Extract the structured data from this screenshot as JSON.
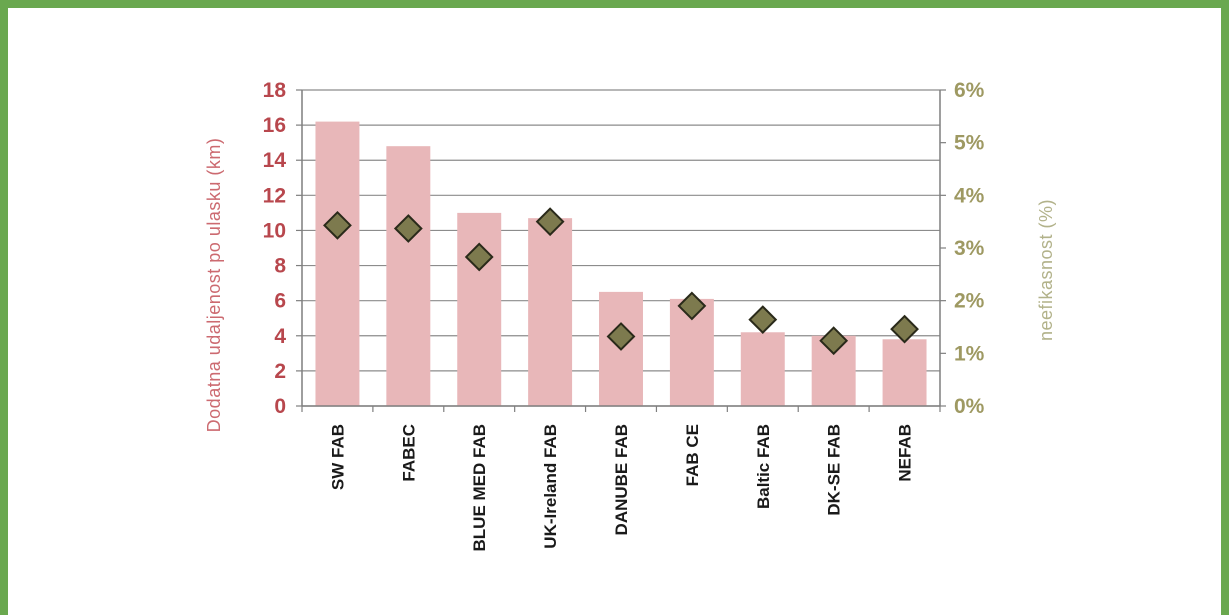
{
  "chart_data": {
    "type": "bar",
    "categories": [
      "SW FAB",
      "FABEC",
      "BLUE MED FAB",
      "UK-Ireland FAB",
      "DANUBE FAB",
      "FAB CE",
      "Baltic FAB",
      "DK-SE FAB",
      "NEFAB"
    ],
    "series": [
      {
        "axis": "left",
        "type": "bar",
        "values": [
          16.2,
          14.8,
          11.0,
          10.7,
          6.5,
          6.1,
          4.2,
          4.0,
          3.8
        ],
        "color": "#e8b7b9"
      },
      {
        "axis": "right",
        "type": "scatter",
        "marker": "diamond",
        "values": [
          3.43,
          3.37,
          2.83,
          3.5,
          1.32,
          1.9,
          1.64,
          1.24,
          1.46
        ],
        "color": "#7d7a4e"
      }
    ],
    "ylabel": "Dodatna udaljenost po ulasku (km)",
    "ylabel_right": "neefikasnost (%)",
    "ylim": [
      0,
      18
    ],
    "yticks": [
      0,
      2,
      4,
      6,
      8,
      10,
      12,
      14,
      16,
      18
    ],
    "ylim_right": [
      0,
      6
    ],
    "yticks_right": [
      "0%",
      "1%",
      "2%",
      "3%",
      "4%",
      "5%",
      "6%"
    ],
    "grid": true,
    "legend": "none"
  },
  "colors": {
    "frame": "#6aa84f",
    "left_axis_text": "#b8474d",
    "right_axis_text": "#9e9962",
    "grid": "#8c8c8c"
  }
}
